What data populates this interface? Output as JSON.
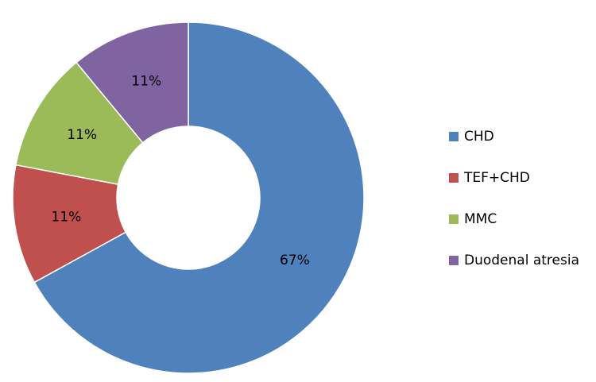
{
  "chart_data": {
    "type": "donut",
    "categories": [
      "CHD",
      "TEF+CHD",
      "MMC",
      "Duodenal atresia"
    ],
    "values": [
      67,
      11,
      11,
      11
    ],
    "value_labels": [
      "67%",
      "11%",
      "11%",
      "11%"
    ],
    "colors": [
      "#4f81bd",
      "#c0504d",
      "#9bbb59",
      "#8064a2"
    ],
    "legend": "right"
  }
}
